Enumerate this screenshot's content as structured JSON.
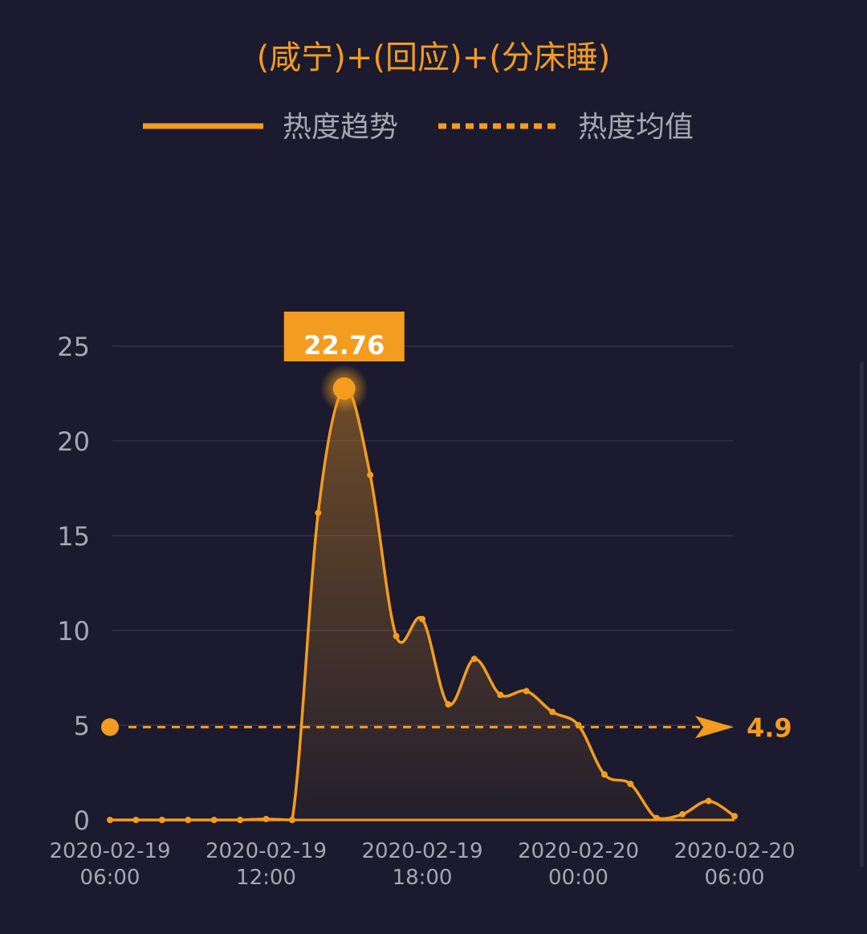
{
  "chart_data": {
    "type": "area",
    "title": "(咸宁)+(回应)+(分床睡)",
    "legend": [
      {
        "name": "热度趋势",
        "style": "solid"
      },
      {
        "name": "热度均值",
        "style": "dashed"
      }
    ],
    "legend_position": "top",
    "x_tick_labels": [
      [
        "2020-02-19",
        "06:00"
      ],
      [
        "2020-02-19",
        "12:00"
      ],
      [
        "2020-02-19",
        "18:00"
      ],
      [
        "2020-02-20",
        "00:00"
      ],
      [
        "2020-02-20",
        "06:00"
      ]
    ],
    "x_range": [
      "2020-02-19 06:00",
      "2020-02-20 06:00"
    ],
    "y_ticks": [
      0,
      5,
      10,
      15,
      20,
      25
    ],
    "ylim": [
      0,
      25
    ],
    "grid": true,
    "series": [
      {
        "name": "热度趋势",
        "x": [
          "2020-02-19 06:00",
          "2020-02-19 07:00",
          "2020-02-19 08:00",
          "2020-02-19 09:00",
          "2020-02-19 10:00",
          "2020-02-19 11:00",
          "2020-02-19 12:00",
          "2020-02-19 13:00",
          "2020-02-19 14:00",
          "2020-02-19 15:00",
          "2020-02-19 16:00",
          "2020-02-19 17:00",
          "2020-02-19 18:00",
          "2020-02-19 19:00",
          "2020-02-19 20:00",
          "2020-02-19 21:00",
          "2020-02-19 22:00",
          "2020-02-19 23:00",
          "2020-02-20 00:00",
          "2020-02-20 01:00",
          "2020-02-20 02:00",
          "2020-02-20 03:00",
          "2020-02-20 04:00",
          "2020-02-20 05:00",
          "2020-02-20 06:00"
        ],
        "values": [
          0,
          0,
          0,
          0,
          0,
          0,
          0.05,
          0,
          16.2,
          22.76,
          18.2,
          9.7,
          10.6,
          6.1,
          8.5,
          6.6,
          6.8,
          5.7,
          5.0,
          2.4,
          1.9,
          0.1,
          0.3,
          1.0,
          0.2
        ]
      }
    ],
    "peak": {
      "x": "2020-02-19 15:00",
      "value": "22.76"
    },
    "mean": {
      "value": 4.9,
      "label": "4.9"
    },
    "colors": {
      "line": "#f39c1f",
      "background": "#1b1a2e",
      "grid": "#2c2b45",
      "axis_text": "#a6a6b4",
      "legend_text": "#a6a6b4",
      "title": "#f39c1f",
      "peak_label_bg": "#f39c1f",
      "peak_label_text": "#ffffff"
    }
  }
}
